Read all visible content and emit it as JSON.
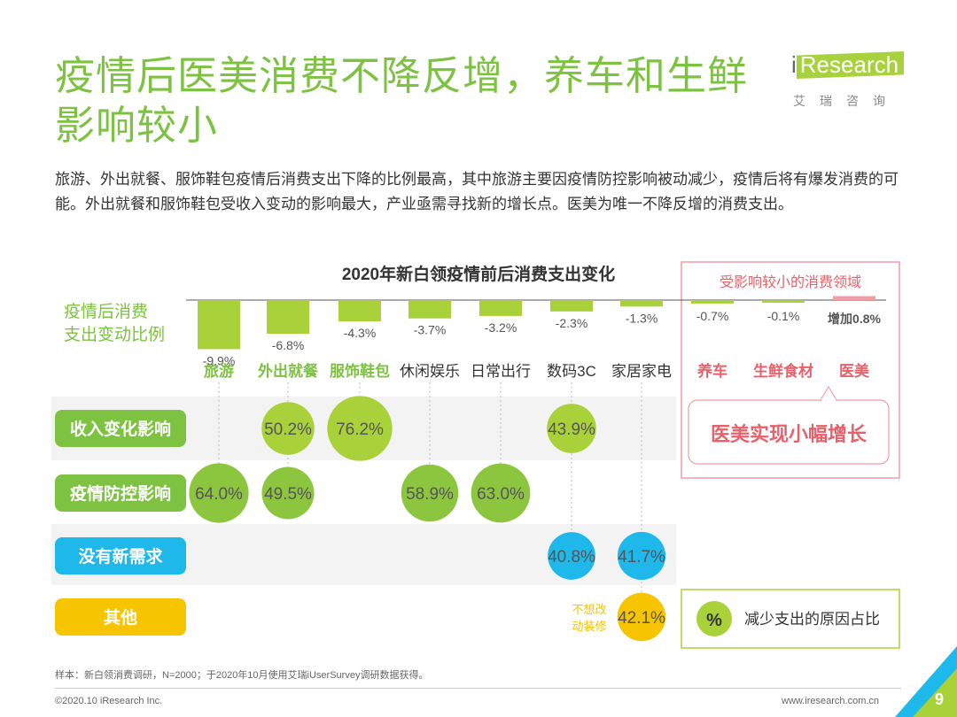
{
  "header": {
    "title": "疫情后医美消费不降反增，养车和生鲜影响较小",
    "subtitle": "旅游、外出就餐、服饰鞋包疫情后消费支出下降的比例最高，其中旅游主要因疫情防控影响被动减少，疫情后将有爆发消费的可能。外出就餐和服饰鞋包受收入变动的影响最大，产业亟需寻找新的增长点。医美为唯一不降反增的消费支出。"
  },
  "logo": {
    "brand_i": "i",
    "brand_rest": "Research",
    "chinese": "艾瑞咨询"
  },
  "chart_data": {
    "type": "bar",
    "title": "2020年新白领疫情前后消费支出变化",
    "ylabel": "疫情后消费支出变动比例",
    "categories": [
      "旅游",
      "外出就餐",
      "服饰鞋包",
      "休闲娱乐",
      "日常出行",
      "数码3C",
      "家居家电",
      "养车",
      "生鲜食材",
      "医美"
    ],
    "values": [
      -9.9,
      -6.8,
      -4.3,
      -3.7,
      -3.2,
      -2.3,
      -1.3,
      -0.7,
      -0.1,
      0.8
    ],
    "value_labels": [
      "-9.9%",
      "-6.8%",
      "-4.3%",
      "-3.7%",
      "-3.2%",
      "-2.3%",
      "-1.3%",
      "-0.7%",
      "-0.1%",
      "增加0.8%"
    ],
    "category_colors": [
      "#7dc241",
      "#7dc241",
      "#7dc241",
      "#333333",
      "#333333",
      "#333333",
      "#333333",
      "#e8606a",
      "#e8606a",
      "#e8606a"
    ],
    "bar_colors": {
      "decrease": "#a9d13a",
      "increase": "#f29ca4"
    },
    "highlight_box": {
      "title": "受影响较小的消费领域",
      "callout": "医美实现小幅增长"
    },
    "reasons": {
      "rows": [
        {
          "label": "收入变化影响",
          "color": "#7dc241",
          "points": [
            {
              "category": "外出就餐",
              "value": 50.2,
              "label": "50.2%"
            },
            {
              "category": "服饰鞋包",
              "value": 76.2,
              "label": "76.2%"
            },
            {
              "category": "数码3C",
              "value": 43.9,
              "label": "43.9%"
            }
          ]
        },
        {
          "label": "疫情防控影响",
          "color": "#7dc241",
          "points": [
            {
              "category": "旅游",
              "value": 64.0,
              "label": "64.0%"
            },
            {
              "category": "外出就餐",
              "value": 49.5,
              "label": "49.5%"
            },
            {
              "category": "休闲娱乐",
              "value": 58.9,
              "label": "58.9%"
            },
            {
              "category": "日常出行",
              "value": 63.0,
              "label": "63.0%"
            }
          ]
        },
        {
          "label": "没有新需求",
          "color": "#1eb8eb",
          "points": [
            {
              "category": "数码3C",
              "value": 40.8,
              "label": "40.8%"
            },
            {
              "category": "家居家电",
              "value": 41.7,
              "label": "41.7%"
            }
          ]
        },
        {
          "label": "其他",
          "color": "#f6c400",
          "points": [
            {
              "category": "家居家电",
              "value": 42.1,
              "label": "42.1%"
            }
          ]
        }
      ],
      "bubble_colors": {
        "收入变化影响": "#a9d13a",
        "疫情防控影响": "#8cc63f",
        "没有新需求": "#1eb8eb",
        "其他": "#f6c400"
      },
      "other_note": "不想改动装修",
      "legend_symbol": "%",
      "legend_text": "减少支出的原因占比"
    }
  },
  "footer": {
    "note": "样本：新白领消费调研，N=2000；于2020年10月使用艾瑞iUserSurvey调研数据获得。",
    "copyright": "©2020.10 iResearch Inc.",
    "website": "www.iresearch.com.cn",
    "page": "9"
  }
}
